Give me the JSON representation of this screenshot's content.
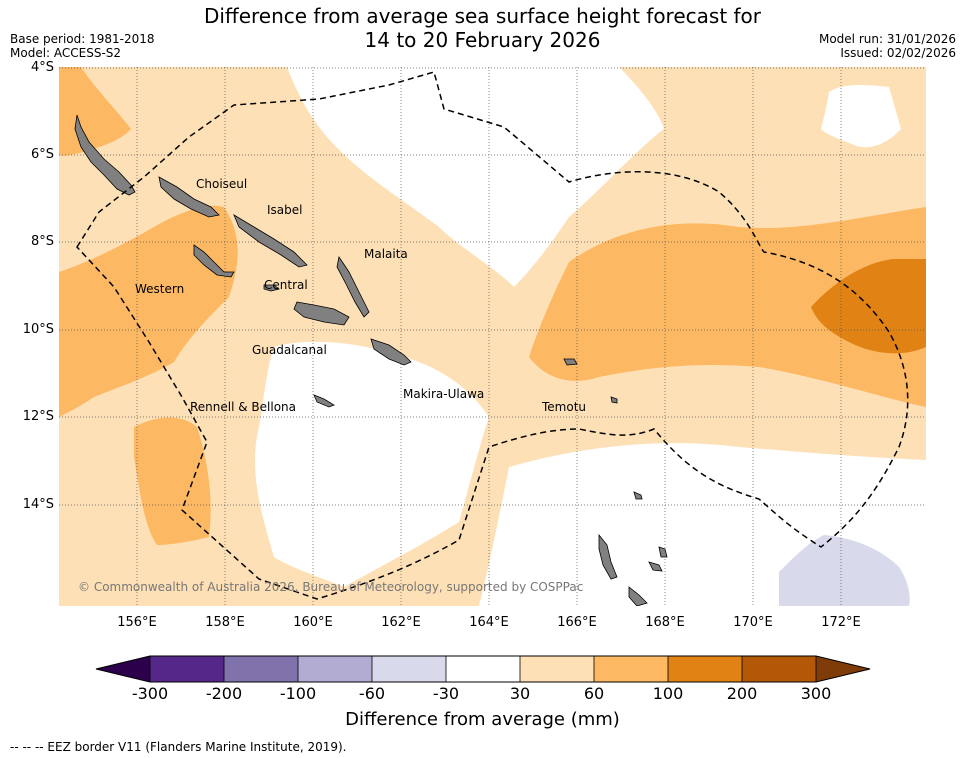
{
  "title": {
    "line1": "Difference from average sea surface height forecast for",
    "line2": "14 to 20 February 2026"
  },
  "meta": {
    "base_period": "Base period: 1981-2018",
    "model": "Model: ACCESS-S2",
    "model_run": "Model run: 31/01/2026",
    "issued": "Issued: 02/02/2026"
  },
  "axes": {
    "lat_labels": [
      "4°S",
      "6°S",
      "8°S",
      "10°S",
      "12°S",
      "14°S"
    ],
    "lon_labels": [
      "156°E",
      "158°E",
      "160°E",
      "162°E",
      "164°E",
      "166°E",
      "168°E",
      "170°E",
      "172°E"
    ]
  },
  "places": [
    "Choiseul",
    "Isabel",
    "Malaita",
    "Western",
    "Central",
    "Guadalcanal",
    "Makira-Ulawa",
    "Rennell & Bellona",
    "Temotu"
  ],
  "copyright": "© Commonwealth of Australia 2026, Bureau of Meteorology, supported by COSPPac",
  "colorbar": {
    "title": "Difference from average (mm)",
    "ticks": [
      "-300",
      "-200",
      "-100",
      "-60",
      "-30",
      "30",
      "60",
      "100",
      "200",
      "300"
    ],
    "under_color": "#2d004b",
    "over_color": "#7f3b08",
    "colors": [
      "#542788",
      "#8073ac",
      "#b2abd2",
      "#d8daeb",
      "#ffffff",
      "#fee0b6",
      "#fdb863",
      "#e08214",
      "#b35806"
    ]
  },
  "legend_note": "--  --  -- EEZ border V11 (Flanders Marine Institute, 2019)."
}
